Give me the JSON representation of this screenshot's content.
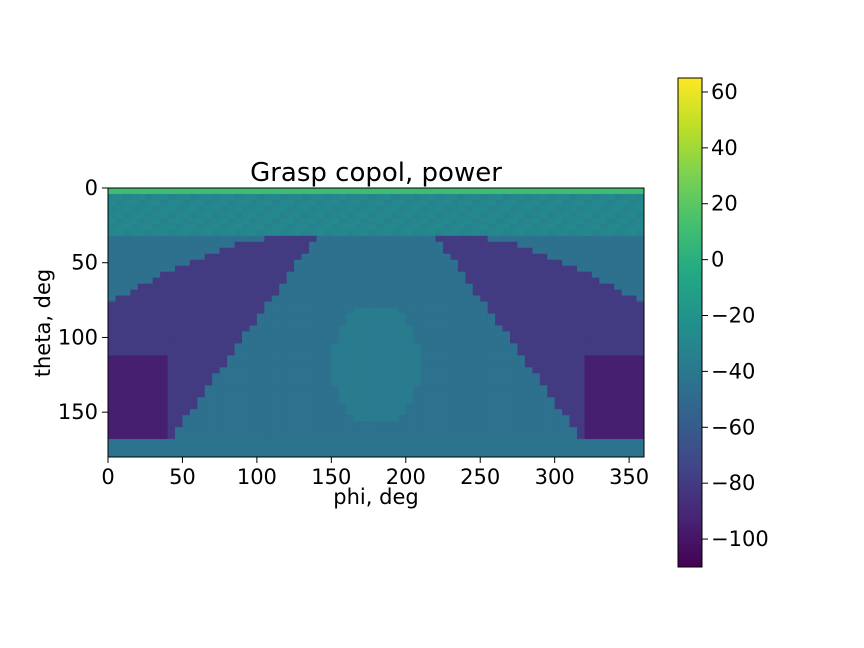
{
  "chart_data": {
    "type": "heatmap",
    "title": "Grasp copol, power",
    "xlabel": "phi, deg",
    "ylabel": "theta, deg",
    "xlim": [
      0,
      360
    ],
    "ylim": [
      180,
      0
    ],
    "x_ticks": [
      "0",
      "50",
      "100",
      "150",
      "200",
      "250",
      "300",
      "350"
    ],
    "x_tick_values": [
      0,
      50,
      100,
      150,
      200,
      250,
      300,
      350
    ],
    "y_ticks": [
      "0",
      "50",
      "100",
      "150"
    ],
    "y_tick_values": [
      0,
      50,
      100,
      150
    ],
    "colorbar": {
      "colormap": "viridis",
      "range": [
        -110,
        65
      ],
      "ticks": [
        "60",
        "40",
        "20",
        "0",
        "−20",
        "−40",
        "−60",
        "−80",
        "−100"
      ],
      "tick_values": [
        60,
        40,
        20,
        0,
        -20,
        -40,
        -60,
        -80,
        -100
      ]
    },
    "features": {
      "top_band": {
        "theta_range": [
          0,
          3
        ],
        "value": 10
      },
      "upper_band": {
        "theta_range": [
          3,
          32
        ],
        "value": -30
      },
      "body_value": -45,
      "lobe_value": -80,
      "lower_lobe_value": -95,
      "lobe_boundary_theta_at_phi0": 77,
      "lobe_boundary_theta_at_phi_edge": 30,
      "left_lobe_phi_max": 140,
      "right_lobe_phi_min": 220,
      "center_oval": {
        "phi": 180,
        "theta": 118,
        "value": -38
      },
      "bottom_cutoff_theta": 168
    }
  }
}
